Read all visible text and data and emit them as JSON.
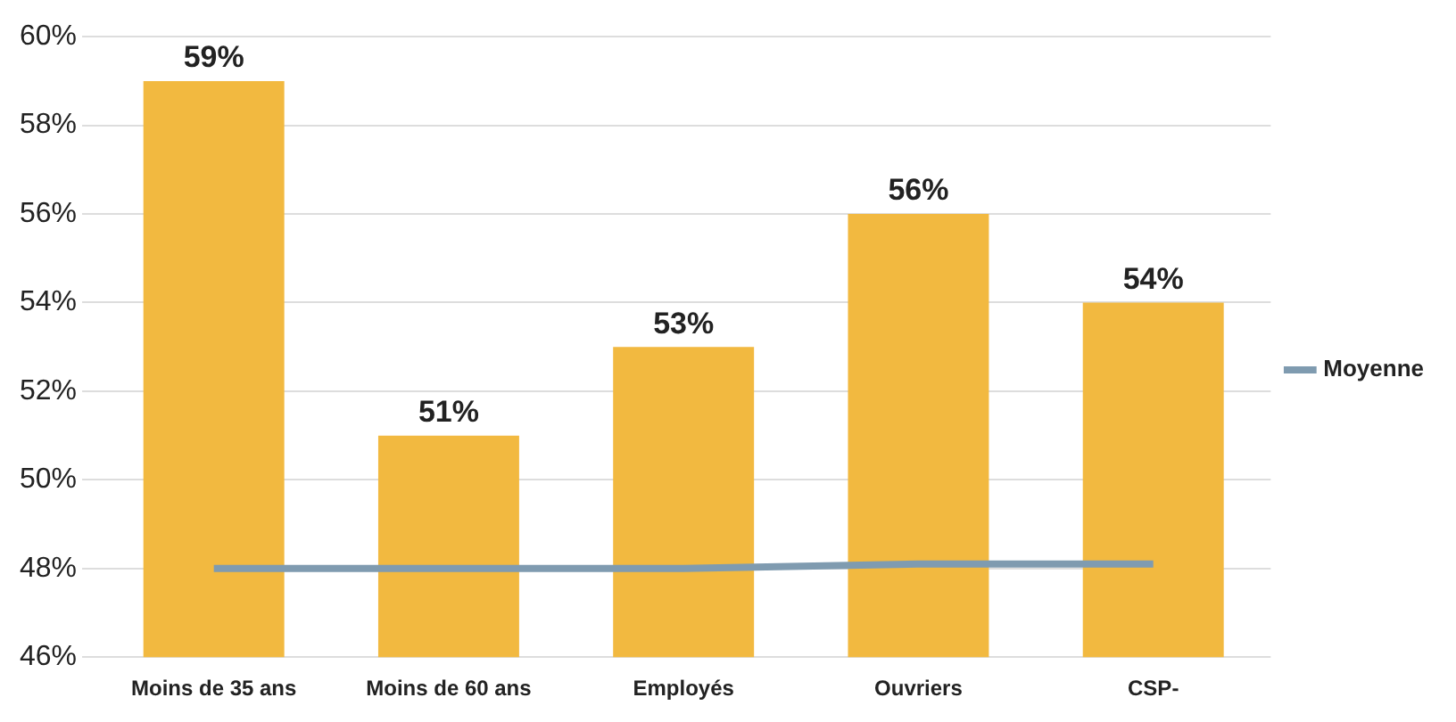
{
  "chart_data": {
    "type": "bar",
    "categories": [
      "Moins de 35 ans",
      "Moins de 60 ans",
      "Employés",
      "Ouvriers",
      "CSP-"
    ],
    "series": [
      {
        "color": "#f2b940",
        "values": [
          59,
          51,
          53,
          56,
          54
        ],
        "value_labels": [
          "59%",
          "51%",
          "53%",
          "56%",
          "54%"
        ]
      },
      {
        "type": "line",
        "name": "Moyenne",
        "color": "#7f9bb0",
        "values": [
          48,
          48,
          48,
          48.1,
          48.1
        ],
        "marker": "none"
      }
    ],
    "ylim": [
      46,
      60
    ],
    "yticks": [
      {
        "value": 46,
        "label": "46%"
      },
      {
        "value": 48,
        "label": "48%"
      },
      {
        "value": 50,
        "label": "50%"
      },
      {
        "value": 52,
        "label": "52%"
      },
      {
        "value": 54,
        "label": "54%"
      },
      {
        "value": 56,
        "label": "56%"
      },
      {
        "value": 58,
        "label": "58%"
      },
      {
        "value": 60,
        "label": "60%"
      }
    ],
    "grid": "y",
    "legend": "right"
  }
}
